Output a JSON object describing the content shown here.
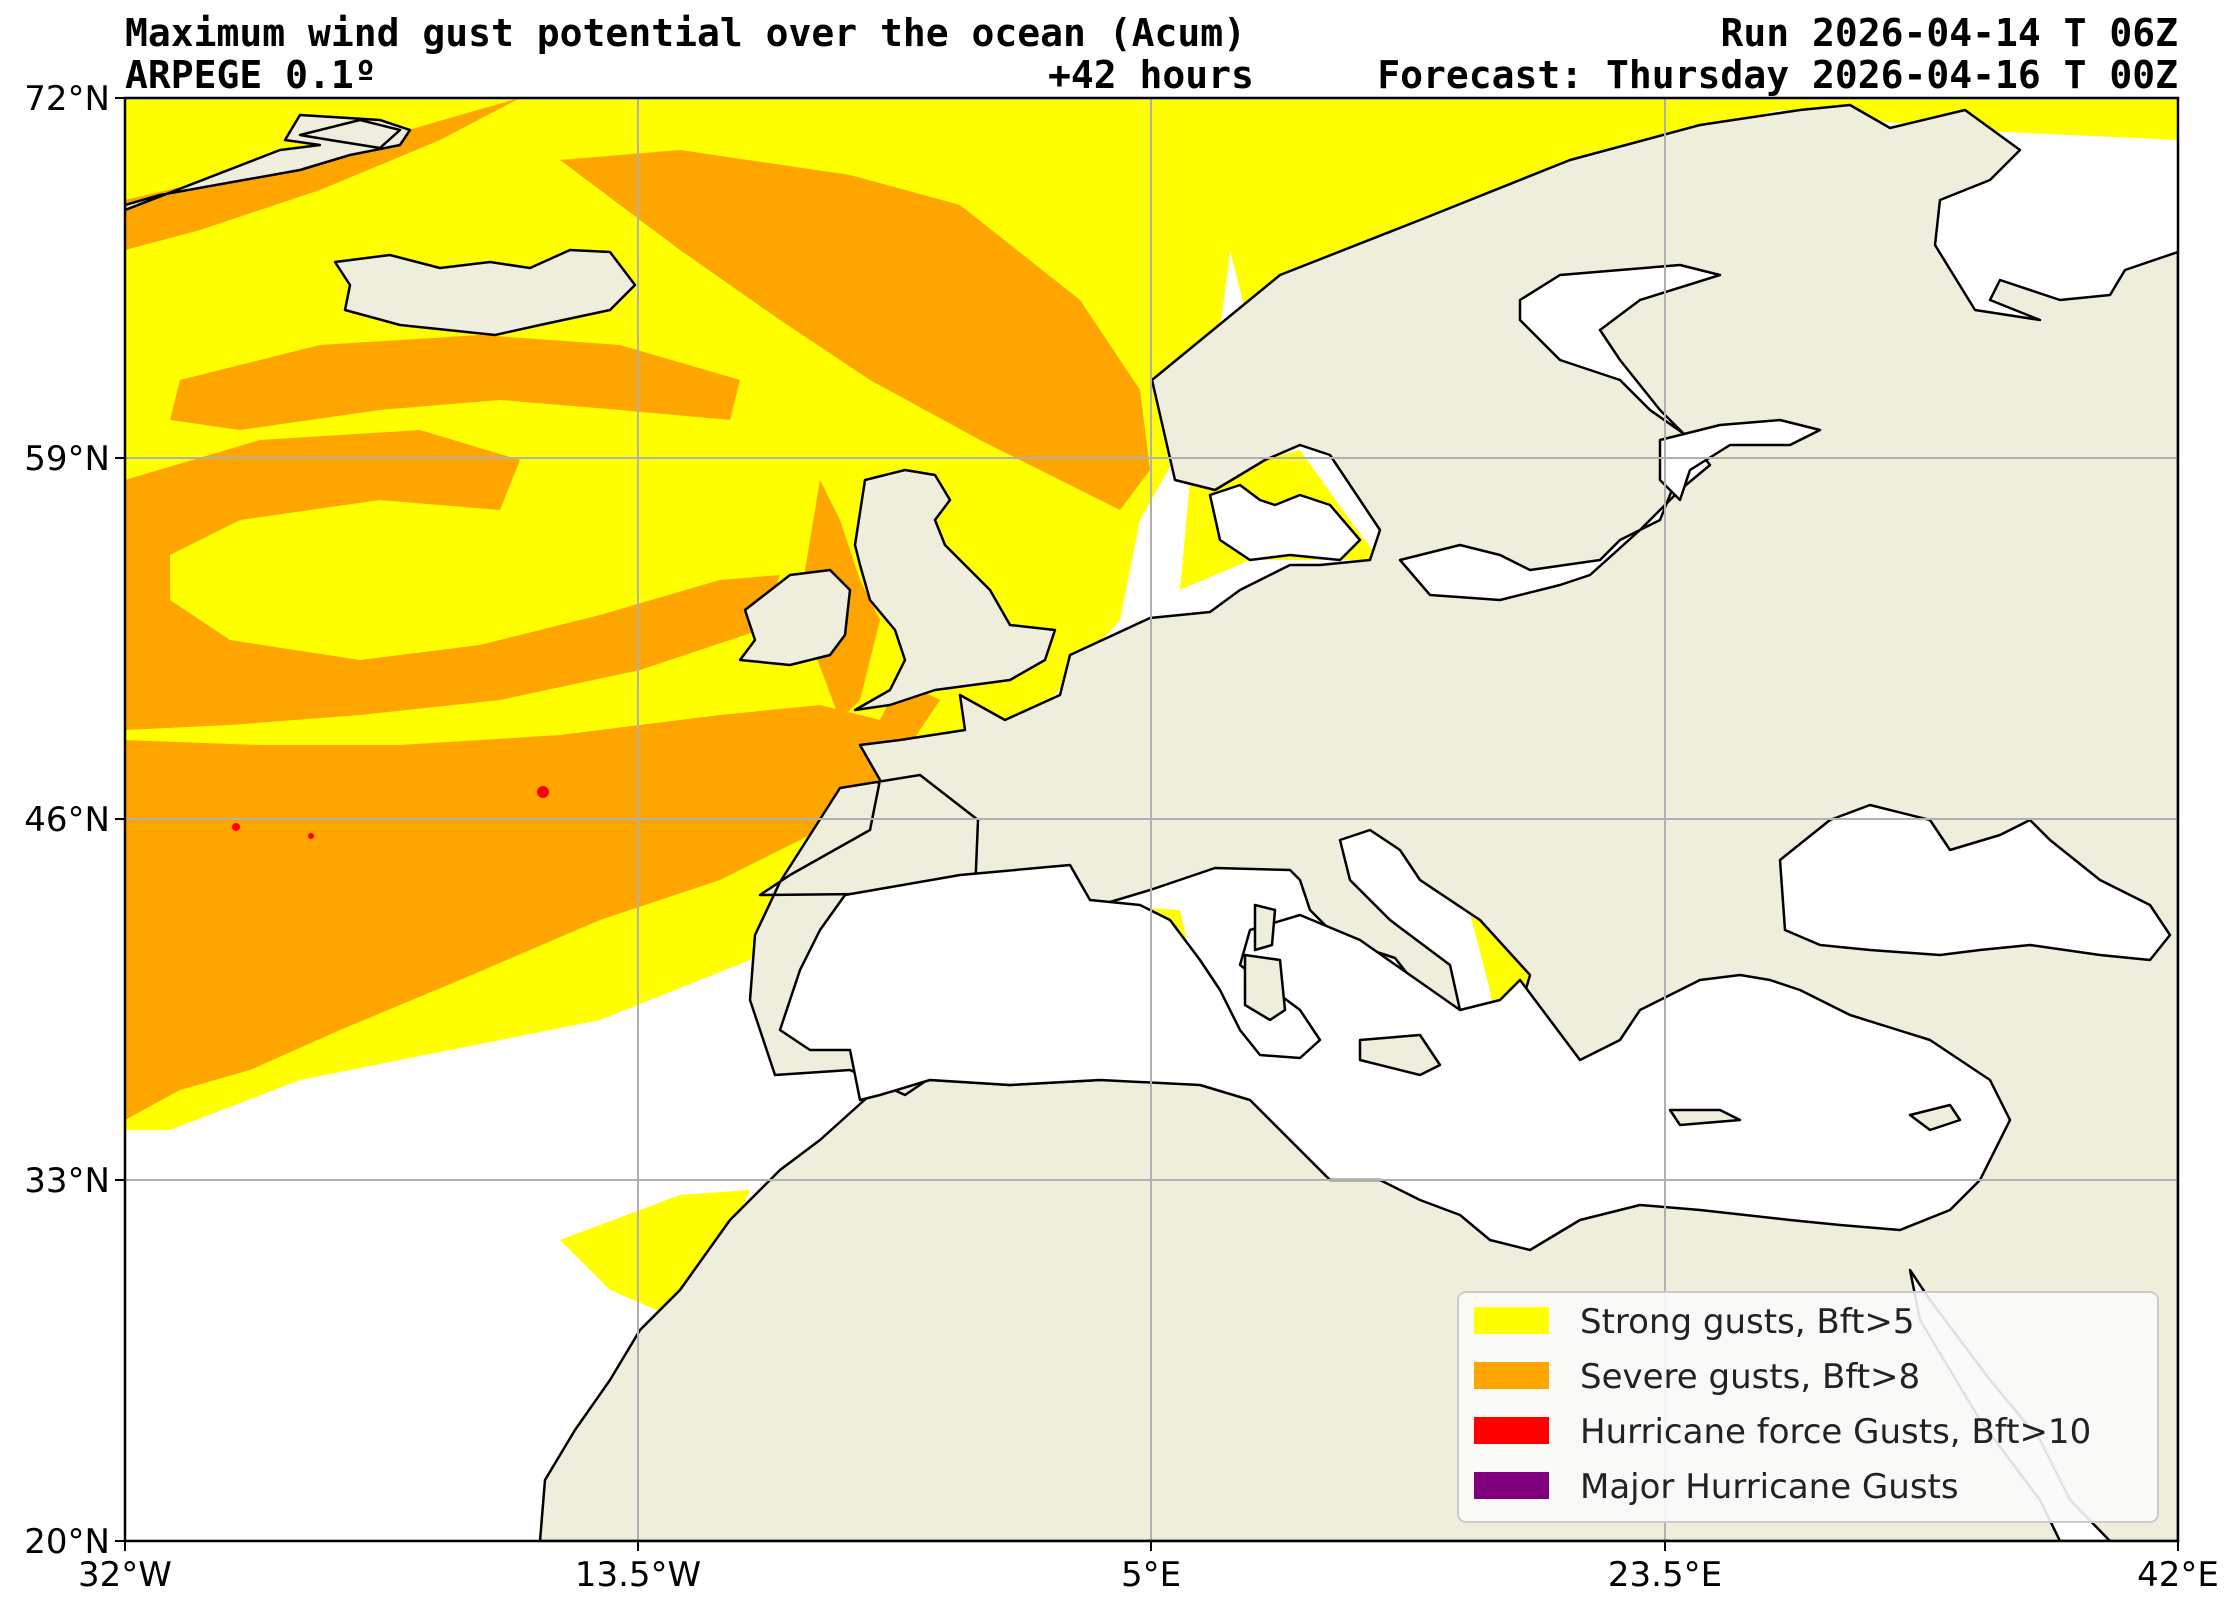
{
  "header": {
    "title": "Maximum wind gust potential over the ocean (Acum)",
    "model": "ARPEGE 0.1º",
    "lead_time": "+42 hours",
    "run": "Run 2026-04-14 T 06Z",
    "forecast": "Forecast: Thursday 2026-04-16 T 00Z"
  },
  "map": {
    "lon_ticks": [
      "32°W",
      "13.5°W",
      "5°E",
      "23.5°E",
      "42°E"
    ],
    "lat_ticks": [
      "72°N",
      "59°N",
      "46°N",
      "33°N",
      "20°N"
    ],
    "grid": true,
    "land_color": "#efeedd",
    "sea_color": "#ffffff"
  },
  "legend": {
    "placement": "bottom-right",
    "items": [
      {
        "label": "Strong gusts, Bft>5",
        "color": "#ffff00"
      },
      {
        "label": "Severe gusts, Bft>8",
        "color": "#ffa500"
      },
      {
        "label": "Hurricane force Gusts, Bft>10",
        "color": "#ff0000"
      },
      {
        "label": "Major Hurricane Gusts",
        "color": "#800080"
      }
    ]
  }
}
